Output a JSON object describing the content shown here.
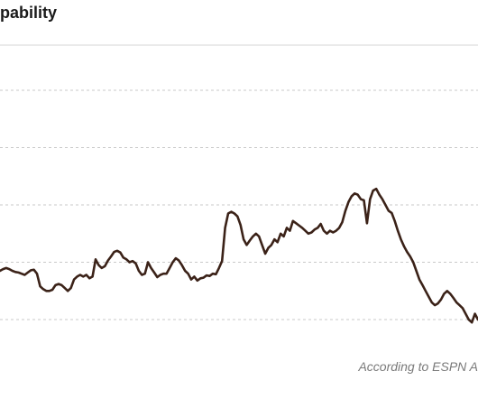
{
  "chart_data": {
    "type": "line",
    "title": "pability",
    "source_note": "According to ESPN A",
    "grid": true,
    "x": [
      0,
      1,
      2,
      3,
      4,
      5,
      6,
      7,
      8,
      9,
      10,
      11,
      12,
      13,
      14,
      15,
      16,
      17,
      18,
      19,
      20,
      21,
      22,
      23,
      24,
      25,
      26,
      27,
      28,
      29,
      30,
      31,
      32,
      33,
      34,
      35,
      36,
      37,
      38,
      39,
      40,
      41,
      42,
      43,
      44,
      45,
      46,
      47,
      48,
      49,
      50,
      51,
      52,
      53,
      54,
      55,
      56,
      57,
      58,
      59,
      60,
      61,
      62,
      63,
      64,
      65,
      66,
      67,
      68,
      69,
      70,
      71,
      72,
      73,
      74,
      75,
      76,
      77,
      78,
      79,
      80,
      81,
      82,
      83,
      84,
      85,
      86,
      87,
      88,
      89,
      90,
      91,
      92,
      93,
      94,
      95,
      96,
      97,
      98,
      99,
      100,
      101,
      102,
      103,
      104,
      105,
      106,
      107,
      108,
      109,
      110,
      111,
      112,
      113,
      114,
      115,
      116,
      117,
      118,
      119,
      120,
      121,
      122,
      123,
      124,
      125,
      126,
      127,
      128,
      129,
      130,
      131,
      132,
      133,
      134,
      135,
      136,
      137,
      138,
      139,
      140,
      141,
      142,
      143,
      144,
      145,
      146,
      147,
      148,
      149,
      150,
      151,
      152,
      153,
      154,
      155
    ],
    "ylim": [
      0,
      4
    ],
    "series": [
      {
        "color": "#3b2218",
        "values": [
          0.85,
          0.88,
          0.9,
          0.88,
          0.85,
          0.83,
          0.82,
          0.8,
          0.78,
          0.82,
          0.86,
          0.87,
          0.8,
          0.58,
          0.53,
          0.5,
          0.5,
          0.52,
          0.6,
          0.62,
          0.6,
          0.55,
          0.5,
          0.55,
          0.7,
          0.75,
          0.78,
          0.75,
          0.78,
          0.72,
          0.75,
          1.05,
          0.95,
          0.9,
          0.93,
          1.03,
          1.1,
          1.18,
          1.2,
          1.17,
          1.08,
          1.05,
          1.0,
          1.02,
          0.98,
          0.85,
          0.78,
          0.8,
          1.0,
          0.9,
          0.82,
          0.74,
          0.78,
          0.8,
          0.8,
          0.9,
          1.0,
          1.07,
          1.03,
          0.95,
          0.85,
          0.8,
          0.7,
          0.75,
          0.68,
          0.72,
          0.73,
          0.77,
          0.76,
          0.8,
          0.79,
          0.9,
          1.02,
          1.6,
          1.85,
          1.88,
          1.85,
          1.8,
          1.65,
          1.4,
          1.3,
          1.38,
          1.45,
          1.5,
          1.45,
          1.3,
          1.15,
          1.25,
          1.3,
          1.4,
          1.35,
          1.5,
          1.45,
          1.6,
          1.55,
          1.72,
          1.68,
          1.64,
          1.6,
          1.55,
          1.5,
          1.52,
          1.57,
          1.6,
          1.67,
          1.55,
          1.5,
          1.55,
          1.52,
          1.55,
          1.6,
          1.7,
          1.9,
          2.05,
          2.15,
          2.2,
          2.18,
          2.1,
          2.08,
          1.68,
          2.1,
          2.25,
          2.28,
          2.18,
          2.1,
          2.0,
          1.9,
          1.86,
          1.72,
          1.55,
          1.4,
          1.28,
          1.18,
          1.1,
          1.0,
          0.85,
          0.7,
          0.6,
          0.5,
          0.4,
          0.3,
          0.25,
          0.28,
          0.35,
          0.45,
          0.5,
          0.45,
          0.38,
          0.3,
          0.25,
          0.2,
          0.1,
          0.0,
          -0.05,
          0.1,
          0.0
        ]
      }
    ]
  }
}
